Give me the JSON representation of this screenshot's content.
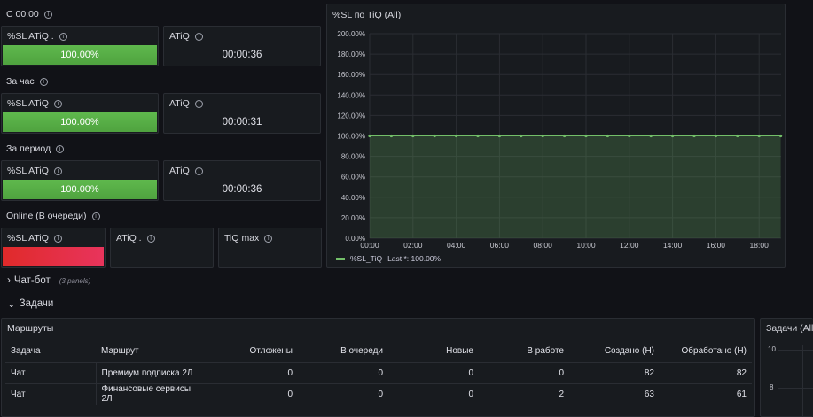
{
  "groups": [
    {
      "title": "С 00:00",
      "sl_title": "%SL ATiQ .",
      "sl_value": "100.00%",
      "sl_fraction": 1.0,
      "atiq_title": "ATiQ",
      "atiq_value": "00:00:36"
    },
    {
      "title": "За час",
      "sl_title": "%SL ATiQ",
      "sl_value": "100.00%",
      "sl_fraction": 1.0,
      "atiq_title": "ATiQ",
      "atiq_value": "00:00:31"
    },
    {
      "title": "За период",
      "sl_title": "%SL ATiQ",
      "sl_value": "100.00%",
      "sl_fraction": 1.0,
      "atiq_title": "ATiQ",
      "atiq_value": "00:00:36"
    }
  ],
  "online": {
    "title": "Online (В очереди)",
    "sl_title": "%SL ATiQ",
    "atiq_title": "ATiQ .",
    "tiq_title": "TiQ max"
  },
  "chart_panel": {
    "title": "%SL по TiQ (All)",
    "legend_label": "%SL_TiQ",
    "legend_value": "Last *: 100.00%"
  },
  "chart_data": {
    "type": "area",
    "title": "%SL по TiQ (All)",
    "series": [
      {
        "name": "%SL_TiQ",
        "color": "#73bf69",
        "values": [
          100,
          100,
          100,
          100,
          100,
          100,
          100,
          100,
          100,
          100,
          100,
          100,
          100,
          100,
          100,
          100,
          100,
          100,
          100,
          100
        ]
      }
    ],
    "x": [
      "00:00",
      "01:00",
      "02:00",
      "03:00",
      "04:00",
      "05:00",
      "06:00",
      "07:00",
      "08:00",
      "09:00",
      "10:00",
      "11:00",
      "12:00",
      "13:00",
      "14:00",
      "15:00",
      "16:00",
      "17:00",
      "18:00",
      "19:00"
    ],
    "x_ticks": [
      "00:00",
      "02:00",
      "04:00",
      "06:00",
      "08:00",
      "10:00",
      "12:00",
      "14:00",
      "16:00",
      "18:00"
    ],
    "y_ticks": [
      "0.00%",
      "20.00%",
      "40.00%",
      "60.00%",
      "80.00%",
      "100.00%",
      "120.00%",
      "140.00%",
      "160.00%",
      "180.00%",
      "200.00%"
    ],
    "ylim": [
      0,
      200
    ],
    "grid": true,
    "legend_placement": "bottom-left"
  },
  "sections": {
    "chatbot": "Чат-бот",
    "chatbot_sub": "(3 panels)",
    "tasks": "Задачи"
  },
  "routes_panel": {
    "title": "Маршруты",
    "headers": [
      "Задача",
      "Маршрут",
      "Отложены",
      "В очереди",
      "Новые",
      "В работе",
      "Создано (Н)",
      "Обработано (Н)"
    ],
    "rows": [
      [
        "Чат",
        "Премиум подписка 2Л",
        "0",
        "0",
        "0",
        "0",
        "82",
        "82"
      ],
      [
        "Чат",
        "Финансовые сервисы 2Л",
        "0",
        "0",
        "0",
        "2",
        "63",
        "61"
      ]
    ]
  },
  "tasks_panel": {
    "title": "Задачи (All)",
    "y_ticks": [
      "10",
      "8"
    ]
  },
  "colors": {
    "green": "#73bf69",
    "red": "#e02a2a",
    "background": "#111217",
    "panel": "#181b1f"
  }
}
